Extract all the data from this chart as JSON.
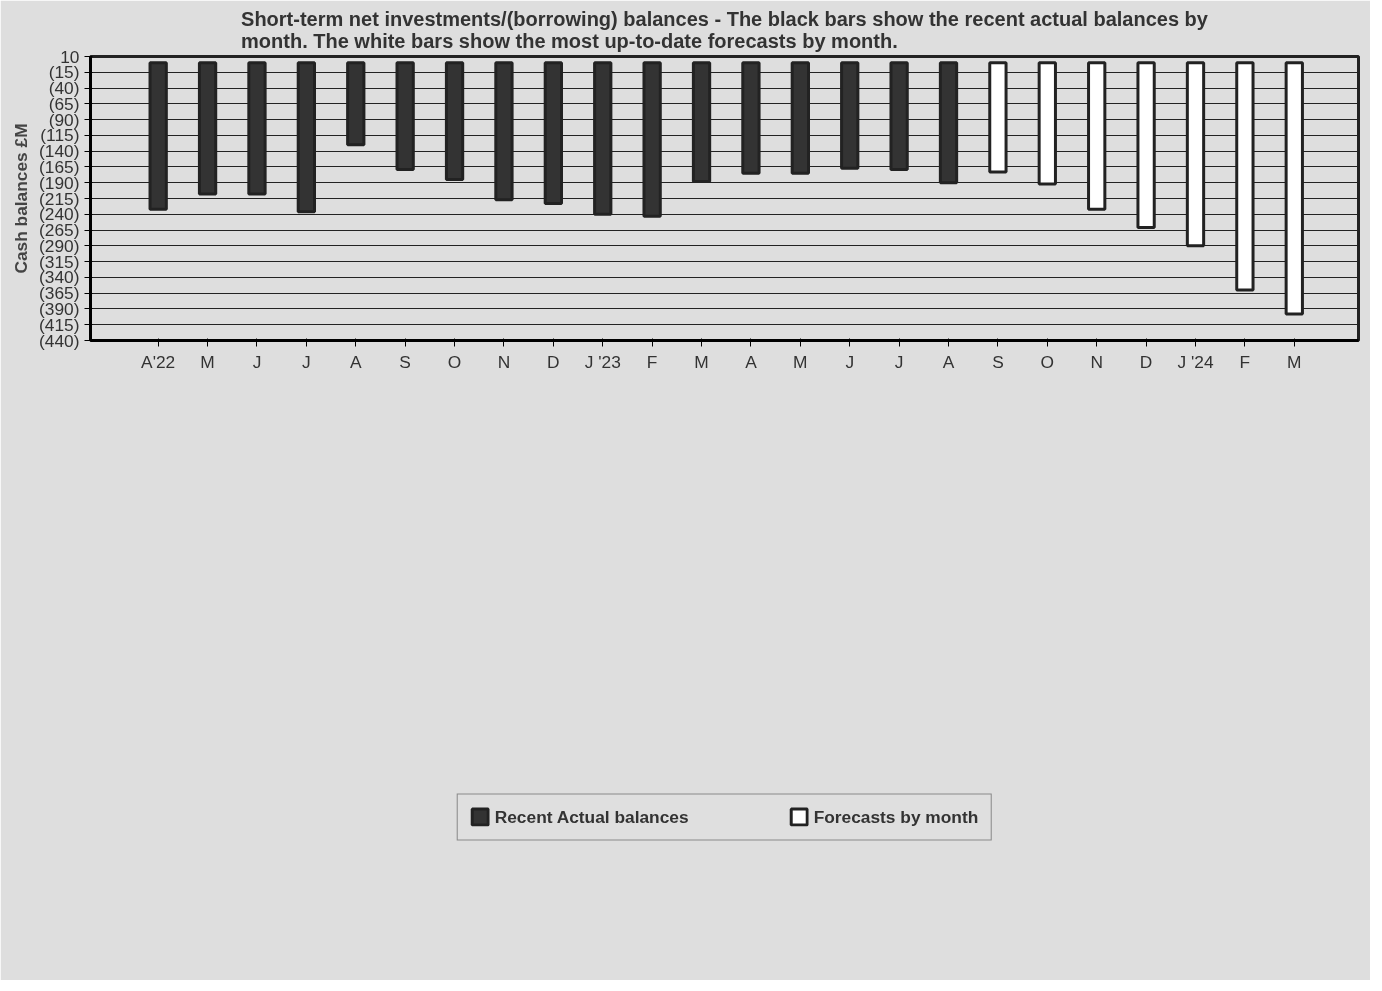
{
  "chart_data": {
    "type": "bar",
    "title": "Short-term net investments/(borrowing) balances - The black bars show the recent actual balances by month. The white bars show the most up-to-date forecasts by month.",
    "ylabel": "Cash balances £M",
    "categories": [
      "A'22",
      "M",
      "J",
      "J",
      "A",
      "S",
      "O",
      "N",
      "D",
      "J '23",
      "F",
      "M",
      "A",
      "M",
      "J",
      "J",
      "A",
      "S",
      "O",
      "N",
      "D",
      "J '24",
      "F",
      "M"
    ],
    "series": [
      {
        "name": "Recent Actual balances",
        "color": "#333333",
        "values": [
          -232,
          -208,
          -208,
          -236,
          -130,
          -169,
          -185,
          -217,
          -223,
          -240,
          -243,
          -188,
          -175,
          -175,
          -167,
          -169,
          -190,
          null,
          null,
          null,
          null,
          null,
          null,
          null
        ]
      },
      {
        "name": "Forecasts by month",
        "color": "#ffffff",
        "values": [
          null,
          null,
          null,
          null,
          null,
          null,
          null,
          null,
          null,
          null,
          null,
          null,
          null,
          null,
          null,
          null,
          null,
          -173,
          -192,
          -232,
          -261,
          -290,
          -360,
          -398
        ]
      }
    ],
    "ylim": [
      -440,
      10
    ],
    "yticks": [
      10,
      {
        "value": -15,
        "label": "(15)"
      },
      {
        "value": -40,
        "label": "(40)"
      },
      {
        "value": -65,
        "label": "(65)"
      },
      {
        "value": -90,
        "label": "(90)"
      },
      {
        "value": -115,
        "label": "(115)"
      },
      {
        "value": -140,
        "label": "(140)"
      },
      {
        "value": -165,
        "label": "(165)"
      },
      {
        "value": -190,
        "label": "(190)"
      },
      {
        "value": -215,
        "label": "(215)"
      },
      {
        "value": -240,
        "label": "(240)"
      },
      {
        "value": -265,
        "label": "(265)"
      },
      {
        "value": -290,
        "label": "(290)"
      },
      {
        "value": -315,
        "label": "(315)"
      },
      {
        "value": -340,
        "label": "(340)"
      },
      {
        "value": -365,
        "label": "(365)"
      },
      {
        "value": -390,
        "label": "(390)"
      },
      {
        "value": -415,
        "label": "(415)"
      },
      {
        "value": -440,
        "label": "(440)"
      }
    ],
    "grid": "y",
    "legend": "bottom"
  }
}
